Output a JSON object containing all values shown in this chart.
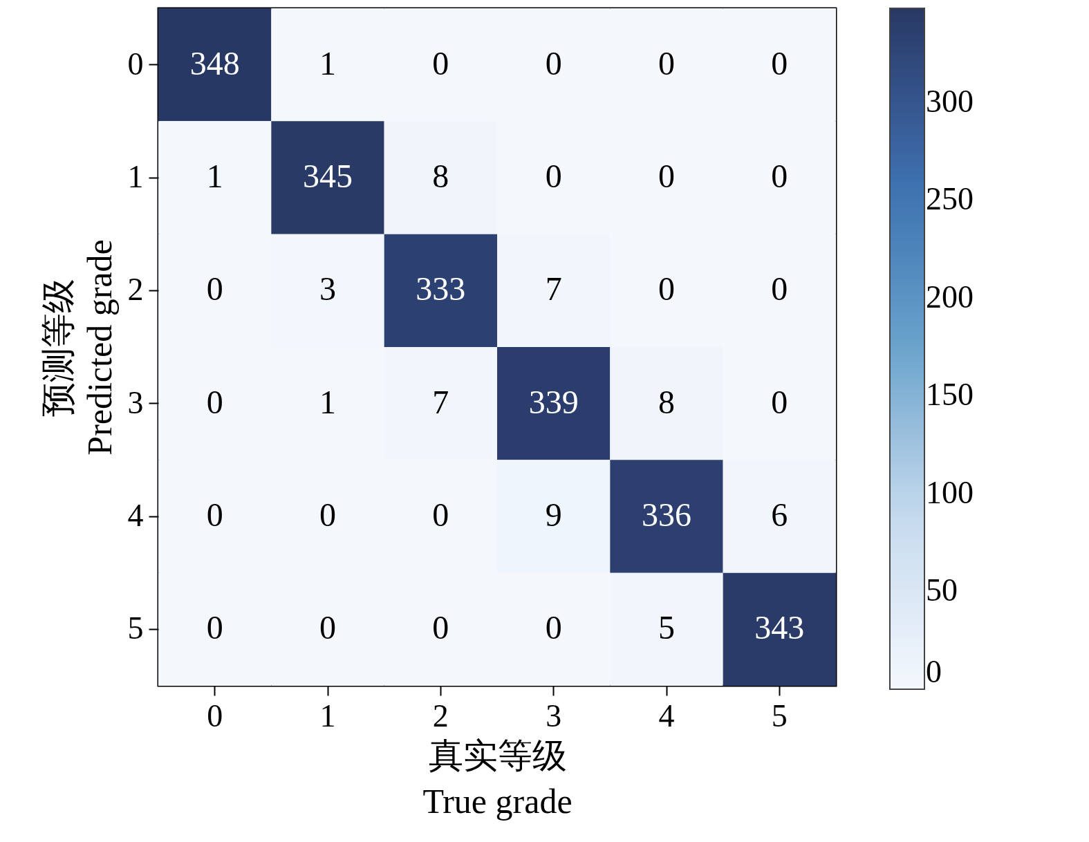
{
  "chart_data": {
    "type": "heatmap",
    "xlabel": "真实等级\nTrue grade",
    "ylabel": "预测等级\nPredicted grade",
    "categories": [
      "0",
      "1",
      "2",
      "3",
      "4",
      "5"
    ],
    "y_categories": [
      "0",
      "1",
      "2",
      "3",
      "4",
      "5"
    ],
    "cells": [
      [
        348,
        1,
        0,
        0,
        0,
        0
      ],
      [
        1,
        345,
        8,
        0,
        0,
        0
      ],
      [
        0,
        3,
        333,
        7,
        0,
        0
      ],
      [
        0,
        1,
        7,
        339,
        8,
        0
      ],
      [
        0,
        0,
        0,
        9,
        336,
        6
      ],
      [
        0,
        0,
        0,
        0,
        5,
        343
      ]
    ],
    "data_labels": true,
    "clim": [
      0,
      348
    ],
    "cticks": [
      0,
      50,
      100,
      150,
      200,
      250,
      300
    ]
  }
}
